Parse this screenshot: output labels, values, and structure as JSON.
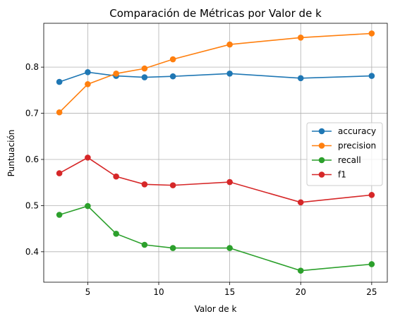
{
  "chart_data": {
    "type": "line",
    "title": "Comparación de Métricas por Valor de k",
    "xlabel": "Valor de k",
    "ylabel": "Puntuación",
    "x": [
      3,
      5,
      7,
      9,
      11,
      15,
      20,
      25
    ],
    "xlim": [
      1.9,
      26.1
    ],
    "ylim": [
      0.334,
      0.895
    ],
    "xticks": [
      5,
      10,
      15,
      20,
      25
    ],
    "yticks": [
      0.4,
      0.5,
      0.6,
      0.7,
      0.8
    ],
    "ytick_labels": [
      "0.4",
      "0.5",
      "0.6",
      "0.7",
      "0.8"
    ],
    "grid": true,
    "legend_position": "center-right",
    "series": [
      {
        "name": "accuracy",
        "color": "#1f77b4",
        "values": [
          0.768,
          0.789,
          0.781,
          0.778,
          0.78,
          0.786,
          0.776,
          0.781
        ]
      },
      {
        "name": "precision",
        "color": "#ff7f0e",
        "values": [
          0.702,
          0.763,
          0.786,
          0.797,
          0.817,
          0.849,
          0.864,
          0.873
        ]
      },
      {
        "name": "recall",
        "color": "#2ca02c",
        "values": [
          0.48,
          0.499,
          0.439,
          0.415,
          0.408,
          0.408,
          0.359,
          0.373
        ]
      },
      {
        "name": "f1",
        "color": "#d62728",
        "values": [
          0.57,
          0.604,
          0.563,
          0.546,
          0.544,
          0.551,
          0.507,
          0.523
        ]
      }
    ]
  }
}
